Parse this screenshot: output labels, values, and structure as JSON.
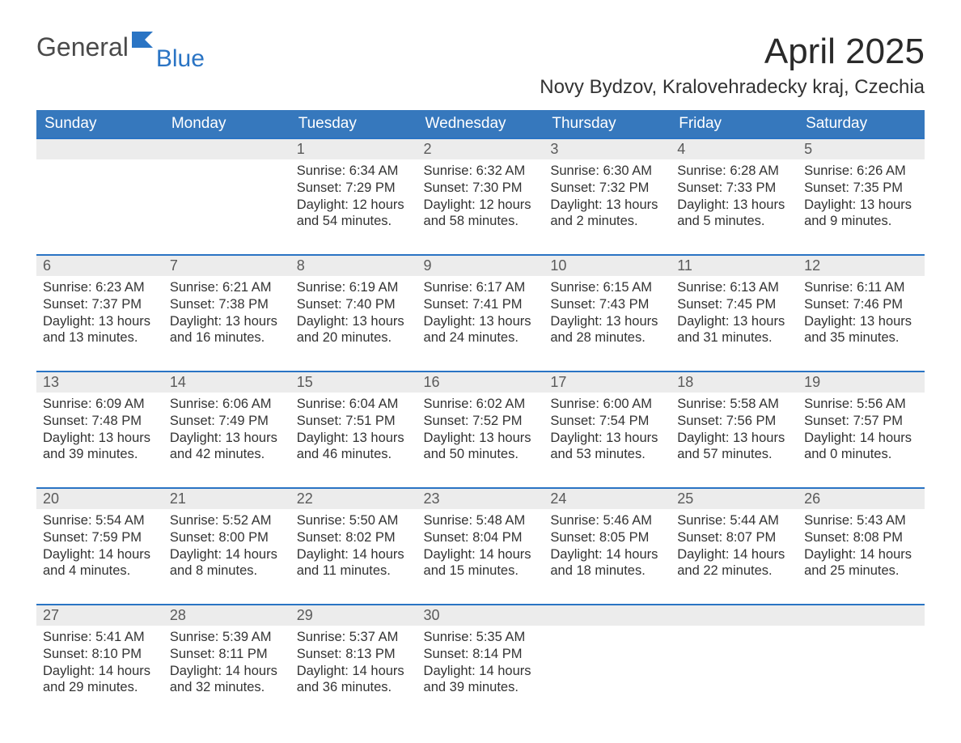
{
  "logo": {
    "part1": "General",
    "part2": "Blue"
  },
  "title": "April 2025",
  "location": "Novy Bydzov, Kralovehradecky kraj, Czechia",
  "colors": {
    "header_bg": "#3678bd",
    "accent_border": "#2a74c4",
    "daynum_bg": "#ececec",
    "text": "#333333",
    "background": "#ffffff"
  },
  "dayNames": [
    "Sunday",
    "Monday",
    "Tuesday",
    "Wednesday",
    "Thursday",
    "Friday",
    "Saturday"
  ],
  "weeks": [
    [
      {
        "num": "",
        "lines": []
      },
      {
        "num": "",
        "lines": []
      },
      {
        "num": "1",
        "lines": [
          "Sunrise: 6:34 AM",
          "Sunset: 7:29 PM",
          "Daylight: 12 hours and 54 minutes."
        ]
      },
      {
        "num": "2",
        "lines": [
          "Sunrise: 6:32 AM",
          "Sunset: 7:30 PM",
          "Daylight: 12 hours and 58 minutes."
        ]
      },
      {
        "num": "3",
        "lines": [
          "Sunrise: 6:30 AM",
          "Sunset: 7:32 PM",
          "Daylight: 13 hours and 2 minutes."
        ]
      },
      {
        "num": "4",
        "lines": [
          "Sunrise: 6:28 AM",
          "Sunset: 7:33 PM",
          "Daylight: 13 hours and 5 minutes."
        ]
      },
      {
        "num": "5",
        "lines": [
          "Sunrise: 6:26 AM",
          "Sunset: 7:35 PM",
          "Daylight: 13 hours and 9 minutes."
        ]
      }
    ],
    [
      {
        "num": "6",
        "lines": [
          "Sunrise: 6:23 AM",
          "Sunset: 7:37 PM",
          "Daylight: 13 hours and 13 minutes."
        ]
      },
      {
        "num": "7",
        "lines": [
          "Sunrise: 6:21 AM",
          "Sunset: 7:38 PM",
          "Daylight: 13 hours and 16 minutes."
        ]
      },
      {
        "num": "8",
        "lines": [
          "Sunrise: 6:19 AM",
          "Sunset: 7:40 PM",
          "Daylight: 13 hours and 20 minutes."
        ]
      },
      {
        "num": "9",
        "lines": [
          "Sunrise: 6:17 AM",
          "Sunset: 7:41 PM",
          "Daylight: 13 hours and 24 minutes."
        ]
      },
      {
        "num": "10",
        "lines": [
          "Sunrise: 6:15 AM",
          "Sunset: 7:43 PM",
          "Daylight: 13 hours and 28 minutes."
        ]
      },
      {
        "num": "11",
        "lines": [
          "Sunrise: 6:13 AM",
          "Sunset: 7:45 PM",
          "Daylight: 13 hours and 31 minutes."
        ]
      },
      {
        "num": "12",
        "lines": [
          "Sunrise: 6:11 AM",
          "Sunset: 7:46 PM",
          "Daylight: 13 hours and 35 minutes."
        ]
      }
    ],
    [
      {
        "num": "13",
        "lines": [
          "Sunrise: 6:09 AM",
          "Sunset: 7:48 PM",
          "Daylight: 13 hours and 39 minutes."
        ]
      },
      {
        "num": "14",
        "lines": [
          "Sunrise: 6:06 AM",
          "Sunset: 7:49 PM",
          "Daylight: 13 hours and 42 minutes."
        ]
      },
      {
        "num": "15",
        "lines": [
          "Sunrise: 6:04 AM",
          "Sunset: 7:51 PM",
          "Daylight: 13 hours and 46 minutes."
        ]
      },
      {
        "num": "16",
        "lines": [
          "Sunrise: 6:02 AM",
          "Sunset: 7:52 PM",
          "Daylight: 13 hours and 50 minutes."
        ]
      },
      {
        "num": "17",
        "lines": [
          "Sunrise: 6:00 AM",
          "Sunset: 7:54 PM",
          "Daylight: 13 hours and 53 minutes."
        ]
      },
      {
        "num": "18",
        "lines": [
          "Sunrise: 5:58 AM",
          "Sunset: 7:56 PM",
          "Daylight: 13 hours and 57 minutes."
        ]
      },
      {
        "num": "19",
        "lines": [
          "Sunrise: 5:56 AM",
          "Sunset: 7:57 PM",
          "Daylight: 14 hours and 0 minutes."
        ]
      }
    ],
    [
      {
        "num": "20",
        "lines": [
          "Sunrise: 5:54 AM",
          "Sunset: 7:59 PM",
          "Daylight: 14 hours and 4 minutes."
        ]
      },
      {
        "num": "21",
        "lines": [
          "Sunrise: 5:52 AM",
          "Sunset: 8:00 PM",
          "Daylight: 14 hours and 8 minutes."
        ]
      },
      {
        "num": "22",
        "lines": [
          "Sunrise: 5:50 AM",
          "Sunset: 8:02 PM",
          "Daylight: 14 hours and 11 minutes."
        ]
      },
      {
        "num": "23",
        "lines": [
          "Sunrise: 5:48 AM",
          "Sunset: 8:04 PM",
          "Daylight: 14 hours and 15 minutes."
        ]
      },
      {
        "num": "24",
        "lines": [
          "Sunrise: 5:46 AM",
          "Sunset: 8:05 PM",
          "Daylight: 14 hours and 18 minutes."
        ]
      },
      {
        "num": "25",
        "lines": [
          "Sunrise: 5:44 AM",
          "Sunset: 8:07 PM",
          "Daylight: 14 hours and 22 minutes."
        ]
      },
      {
        "num": "26",
        "lines": [
          "Sunrise: 5:43 AM",
          "Sunset: 8:08 PM",
          "Daylight: 14 hours and 25 minutes."
        ]
      }
    ],
    [
      {
        "num": "27",
        "lines": [
          "Sunrise: 5:41 AM",
          "Sunset: 8:10 PM",
          "Daylight: 14 hours and 29 minutes."
        ]
      },
      {
        "num": "28",
        "lines": [
          "Sunrise: 5:39 AM",
          "Sunset: 8:11 PM",
          "Daylight: 14 hours and 32 minutes."
        ]
      },
      {
        "num": "29",
        "lines": [
          "Sunrise: 5:37 AM",
          "Sunset: 8:13 PM",
          "Daylight: 14 hours and 36 minutes."
        ]
      },
      {
        "num": "30",
        "lines": [
          "Sunrise: 5:35 AM",
          "Sunset: 8:14 PM",
          "Daylight: 14 hours and 39 minutes."
        ]
      },
      {
        "num": "",
        "lines": []
      },
      {
        "num": "",
        "lines": []
      },
      {
        "num": "",
        "lines": []
      }
    ]
  ]
}
